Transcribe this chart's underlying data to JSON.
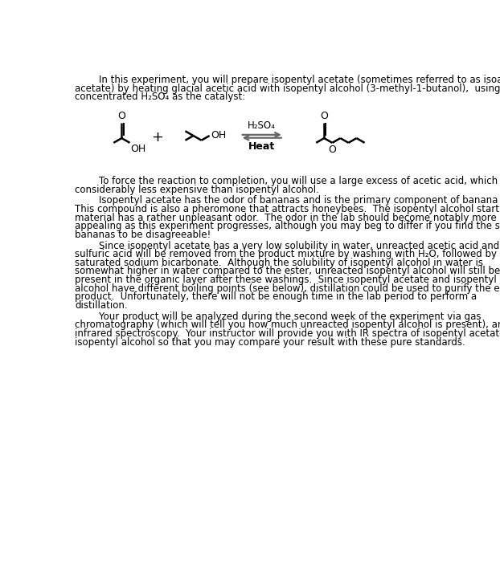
{
  "background_color": "#ffffff",
  "page_width": 6.22,
  "page_height": 7.0,
  "text_color": "#000000",
  "p1_lines": [
    "        In this experiment, you will prepare isopentyl acetate (sometimes referred to as isoamyl",
    "acetate) by heating glacial acetic acid with isopentyl alcohol (3-methyl-1-butanol),  using",
    "concentrated H₂SO₄ as the catalyst:"
  ],
  "p2_lines": [
    "        To force the reaction to completion, you will use a large excess of acetic acid, which is",
    "considerably less expensive than isopentyl alcohol."
  ],
  "p3_lines": [
    "        Isopentyl acetate has the odor of bananas and is the primary component of banana oil.",
    "This compound is also a pheromone that attracts honeybees.  The isopentyl alcohol starting",
    "material has a rather unpleasant odor.  The odor in the lab should become notably more",
    "appealing as this experiment progresses, although you may beg to differ if you find the smell of",
    "bananas to be disagreeable!"
  ],
  "p4_lines": [
    "        Since isopentyl acetate has a very low solubility in water, unreacted acetic acid and",
    "sulfuric acid will be removed from the product mixture by washing with H₂O, followed by",
    "saturated sodium bicarbonate.  Although the solubility of isopentyl alcohol in water is",
    "somewhat higher in water compared to the ester, unreacted isopentyl alcohol will still be",
    "present in the organic layer after these washings.  Since isopentyl acetate and isopentyl",
    "alcohol have different boiling points (see below), distillation could be used to purify the ester",
    "product.  Unfortunately, there will not be enough time in the lab period to perform a",
    "distillation."
  ],
  "p5_lines": [
    "        Your product will be analyzed during the second week of the experiment via gas",
    "chromatography (which will tell you how much unreacted isopentyl alcohol is present), and",
    "infrared spectroscopy.  Your instructor will provide you with IR spectra of isopentyl acetate and",
    "isopentyl alcohol so that you may compare your result with these pure standards."
  ],
  "h2so4_label": "H₂SO₄",
  "heat_label": "Heat",
  "o_label": "O",
  "oh_label": "OH",
  "plus_label": "+"
}
